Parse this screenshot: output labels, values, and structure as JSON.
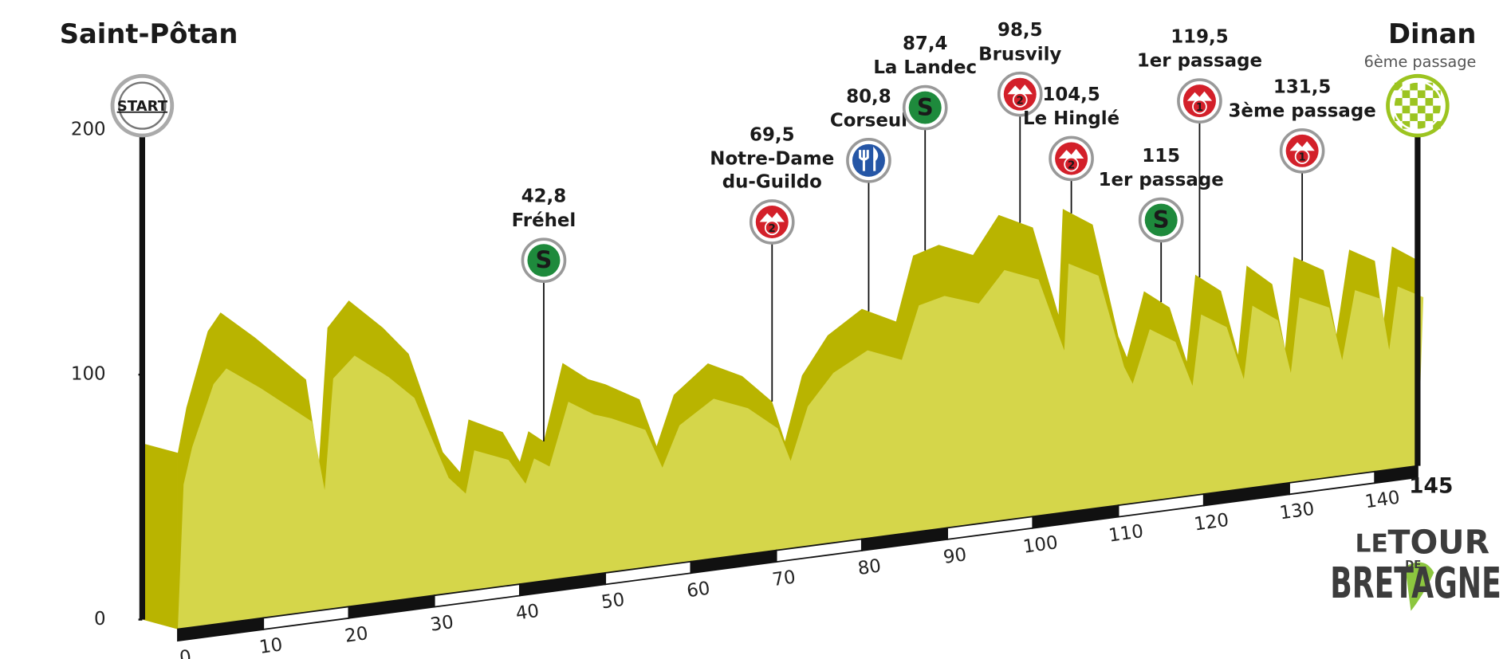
{
  "chart_data": {
    "type": "elevation_profile",
    "start": "Saint-Pôtan",
    "start_badge": "START",
    "finish": "Dinan",
    "finish_note": "6ème passage",
    "xlim": [
      0,
      145
    ],
    "xticks": [
      0,
      10,
      20,
      30,
      40,
      50,
      60,
      70,
      80,
      90,
      100,
      110,
      120,
      130,
      140
    ],
    "ylim": [
      0,
      200
    ],
    "yticks": [
      0,
      100,
      200
    ],
    "fill_color": "#d5d64a",
    "ridge_color": "#b9b400",
    "km": [
      0,
      1,
      3.5,
      5,
      9,
      12,
      15,
      16.5,
      17.5,
      20,
      24,
      27,
      31,
      33,
      34,
      38,
      40,
      41,
      42.8,
      45,
      48,
      50,
      54,
      56,
      58,
      62,
      66,
      69.5,
      71,
      73,
      76,
      80,
      84,
      86,
      89,
      93,
      96,
      100,
      103,
      103.5,
      107,
      110,
      111,
      113,
      116,
      118,
      119,
      122,
      124,
      125,
      128,
      129.5,
      130.5,
      134,
      135.5,
      137,
      140,
      141,
      142,
      145
    ],
    "altitude": [
      72,
      90,
      120,
      127,
      115,
      105,
      95,
      60,
      115,
      125,
      112,
      100,
      58,
      49,
      70,
      63,
      50,
      62,
      57,
      88,
      80,
      77,
      69,
      49,
      69,
      80,
      73,
      61,
      44,
      70,
      85,
      94,
      87,
      113,
      116,
      110,
      125,
      118,
      81,
      124,
      116,
      69,
      60,
      86,
      78,
      55,
      90,
      82,
      55,
      91,
      82,
      55,
      92,
      85,
      58,
      92,
      86,
      60,
      91,
      84
    ],
    "markers": [
      {
        "km": 42.8,
        "km_label": "42,8",
        "name": "Fréhel",
        "kind": "sprint",
        "icon": "S"
      },
      {
        "km": 69.5,
        "km_label": "69,5",
        "name": [
          "Notre-Dame",
          "du-Guildo"
        ],
        "kind": "climb",
        "icon": "2"
      },
      {
        "km": 80.8,
        "km_label": "80,8",
        "name": "Corseul",
        "kind": "feed"
      },
      {
        "km": 87.4,
        "km_label": "87,4",
        "name": "La Landec",
        "kind": "sprint",
        "icon": "S"
      },
      {
        "km": 98.5,
        "km_label": "98,5",
        "name": "Brusvily",
        "kind": "climb",
        "icon": "2"
      },
      {
        "km": 104.5,
        "km_label": "104,5",
        "name": "Le Hinglé",
        "kind": "climb",
        "icon": "2"
      },
      {
        "km": 115,
        "km_label": "115",
        "name": "1er passage",
        "kind": "sprint",
        "icon": "S"
      },
      {
        "km": 119.5,
        "km_label": "119,5",
        "name": "1er passage",
        "kind": "climb",
        "icon": "1"
      },
      {
        "km": 131.5,
        "km_label": "131,5",
        "name": "3ème passage",
        "kind": "climb",
        "icon": "1"
      }
    ]
  },
  "logo": {
    "le": "LE",
    "tour": "TOUR",
    "de": "DE",
    "bretagne": "BRETAGNE"
  }
}
